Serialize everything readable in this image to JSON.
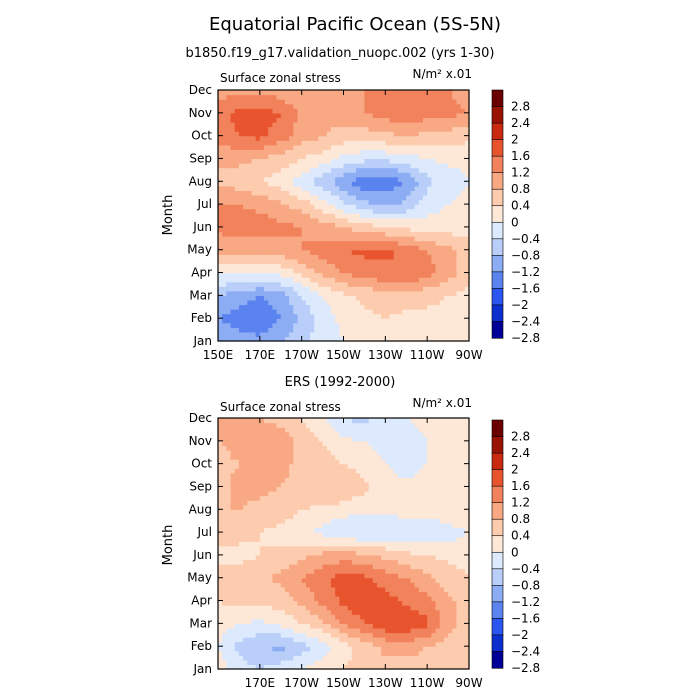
{
  "title": "Equatorial Pacific Ocean (5S-5N)",
  "colorbar": {
    "colors": [
      "#000096",
      "#0c2fd0",
      "#2a55f0",
      "#5a83f0",
      "#8cacf4",
      "#b9cff9",
      "#dde9fc",
      "#fde8d8",
      "#fdcbae",
      "#f8a883",
      "#f2825c",
      "#e8542e",
      "#c92a0f",
      "#991304",
      "#6b0000"
    ],
    "labels": [
      "2.8",
      "2.4",
      "2",
      "1.6",
      "1.2",
      "0.8",
      "0.4",
      "0",
      "−0.4",
      "−0.8",
      "−1.2",
      "−1.6",
      "−2",
      "−2.4",
      "−2.8"
    ]
  },
  "chart_data": [
    {
      "type": "heatmap",
      "subtitle": "b1850.f19_g17.validation_nuopc.002 (yrs 1-30)",
      "left_label": "Surface zonal stress",
      "right_label": "N/m² x.01",
      "ylabel": "Month",
      "x_ticks": [
        "150E",
        "170E",
        "170W",
        "150W",
        "130W",
        "110W",
        "90W"
      ],
      "y_ticks": [
        "Jan",
        "Feb",
        "Mar",
        "Apr",
        "May",
        "Jun",
        "Jul",
        "Aug",
        "Sep",
        "Oct",
        "Nov",
        "Dec"
      ],
      "xlim": [
        150,
        270
      ],
      "grid_x": [
        150,
        160,
        170,
        180,
        190,
        200,
        210,
        220,
        230,
        240,
        250,
        260,
        270
      ],
      "values": [
        [
          -1.2,
          -1.4,
          -1.5,
          -1.2,
          -0.9,
          -0.6,
          -0.4,
          -0.2,
          -0.1,
          -0.1,
          -0.1,
          -0.1,
          -0.1
        ],
        [
          -1.6,
          -1.8,
          -1.9,
          -1.6,
          -1.1,
          -0.6,
          -0.3,
          -0.1,
          0.0,
          -0.1,
          -0.1,
          -0.1,
          -0.1
        ],
        [
          -1.2,
          -1.4,
          -1.6,
          -1.4,
          -0.8,
          -0.4,
          -0.1,
          0.1,
          0.2,
          0.2,
          0.1,
          0.0,
          -0.1
        ],
        [
          -0.3,
          -0.4,
          -0.4,
          -0.3,
          0.1,
          0.5,
          0.8,
          1.0,
          1.1,
          1.2,
          1.0,
          0.6,
          0.1
        ],
        [
          0.5,
          0.6,
          0.5,
          0.6,
          0.8,
          1.0,
          1.2,
          1.3,
          1.3,
          1.1,
          0.8,
          0.5,
          0.2
        ],
        [
          0.9,
          1.0,
          1.0,
          0.9,
          0.8,
          0.6,
          0.4,
          0.2,
          0.0,
          -0.1,
          -0.2,
          -0.2,
          -0.2
        ],
        [
          0.8,
          0.8,
          0.7,
          0.5,
          0.2,
          -0.2,
          -0.7,
          -1.1,
          -1.3,
          -1.1,
          -0.6,
          -0.4,
          -0.3
        ],
        [
          0.3,
          0.2,
          0.0,
          -0.2,
          -0.6,
          -1.0,
          -1.5,
          -1.9,
          -1.9,
          -1.6,
          -0.9,
          -0.6,
          -0.4
        ],
        [
          0.5,
          0.5,
          0.4,
          0.2,
          0.0,
          -0.2,
          -0.5,
          -0.7,
          -0.7,
          -0.6,
          -0.4,
          -0.3,
          -0.3
        ],
        [
          1.0,
          1.2,
          1.3,
          1.0,
          0.6,
          0.4,
          0.2,
          0.2,
          0.3,
          0.4,
          0.3,
          0.2,
          0.1
        ],
        [
          1.1,
          1.3,
          1.4,
          1.2,
          0.7,
          0.6,
          0.6,
          0.8,
          1.0,
          1.1,
          1.0,
          0.9,
          0.8
        ],
        [
          0.6,
          0.7,
          0.7,
          0.6,
          0.4,
          0.5,
          0.6,
          0.8,
          0.9,
          0.9,
          0.9,
          0.8,
          0.7
        ]
      ]
    },
    {
      "type": "heatmap",
      "subtitle": "ERS (1992-2000)",
      "left_label": "Surface zonal stress",
      "right_label": "N/m² x.01",
      "ylabel": "Month",
      "x_ticks": [
        "170E",
        "170W",
        "150W",
        "130W",
        "110W",
        "90W"
      ],
      "y_ticks": [
        "Jan",
        "Feb",
        "Mar",
        "Apr",
        "May",
        "Jun",
        "Jul",
        "Aug",
        "Sep",
        "Oct",
        "Nov",
        "Dec"
      ],
      "xlim": [
        150,
        270
      ],
      "grid_x": [
        150,
        160,
        170,
        180,
        190,
        200,
        210,
        220,
        230,
        240,
        250,
        260,
        270
      ],
      "values": [
        [
          -0.2,
          -0.6,
          -0.8,
          -0.6,
          -0.4,
          -0.2,
          0.0,
          0.2,
          0.3,
          0.2,
          0.2,
          0.1,
          0.0
        ],
        [
          -0.4,
          -0.9,
          -1.2,
          -1.3,
          -1.0,
          -0.6,
          -0.2,
          0.2,
          0.5,
          0.6,
          0.4,
          0.2,
          0.0
        ],
        [
          -0.2,
          -0.4,
          -0.5,
          -0.3,
          0.0,
          0.3,
          0.8,
          1.2,
          1.5,
          1.5,
          1.3,
          0.6,
          0.2
        ],
        [
          0.0,
          0.1,
          0.1,
          0.2,
          0.5,
          0.9,
          1.3,
          1.5,
          1.4,
          1.1,
          0.9,
          0.5,
          0.2
        ],
        [
          0.1,
          0.2,
          0.3,
          0.5,
          0.8,
          1.1,
          1.4,
          1.3,
          1.0,
          0.8,
          0.5,
          0.2,
          0.0
        ],
        [
          -0.1,
          -0.1,
          0.0,
          0.1,
          0.3,
          0.5,
          0.6,
          0.5,
          0.3,
          0.1,
          0.0,
          -0.1,
          -0.1
        ],
        [
          0.2,
          0.1,
          0.0,
          -0.1,
          -0.3,
          -0.5,
          -0.8,
          -0.8,
          -0.7,
          -0.8,
          -0.8,
          -0.6,
          -0.4
        ],
        [
          0.4,
          0.4,
          0.3,
          0.2,
          0.0,
          -0.1,
          -0.2,
          -0.3,
          -0.3,
          -0.2,
          -0.2,
          -0.1,
          0.0
        ],
        [
          0.3,
          0.5,
          0.5,
          0.4,
          0.3,
          0.4,
          0.4,
          0.1,
          -0.2,
          -0.3,
          -0.2,
          -0.1,
          0.0
        ],
        [
          0.3,
          0.4,
          0.5,
          0.5,
          0.3,
          0.2,
          0.0,
          -0.2,
          -0.4,
          -0.6,
          -0.4,
          -0.2,
          0.0
        ],
        [
          0.4,
          0.5,
          0.5,
          0.6,
          0.3,
          0.0,
          -0.3,
          -0.4,
          -0.5,
          -0.6,
          -0.4,
          -0.2,
          -0.1
        ],
        [
          0.5,
          0.5,
          0.4,
          0.3,
          0.0,
          -0.4,
          -0.8,
          -0.9,
          -0.6,
          -0.4,
          -0.2,
          -0.1,
          0.0
        ]
      ]
    }
  ]
}
